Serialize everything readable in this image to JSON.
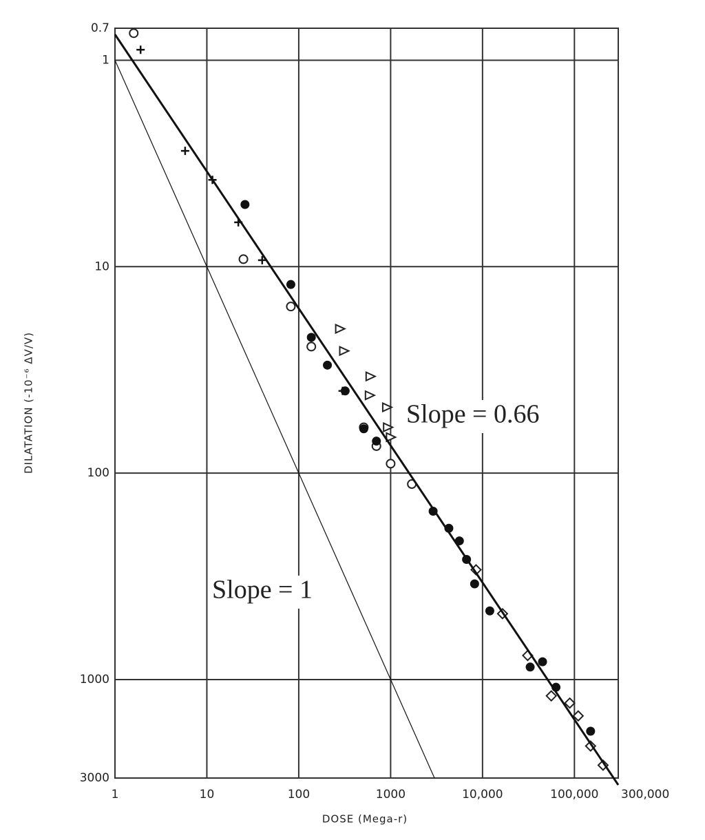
{
  "chart_data": {
    "type": "scatter",
    "x_label": "DOSE (Mega-r)",
    "y_label": "DILATATION (-10⁻⁶ ΔV/V)",
    "xlim": [
      1,
      300000
    ],
    "ylim": [
      0.7,
      3000
    ],
    "xscale": "log",
    "yscale": "log",
    "y_inverted": true,
    "grid": true,
    "xticks": [
      1,
      10,
      100,
      1000,
      {
        "value": 10000,
        "label": "10,000"
      },
      {
        "value": 100000,
        "label": "100,000"
      },
      {
        "value": 300000,
        "label": "300,000"
      }
    ],
    "yticks": [
      0.7,
      1,
      10,
      100,
      1000,
      3000
    ],
    "annotations": [
      "Slope = 0.66",
      "Slope = 1"
    ],
    "series": [
      {
        "marker": "open-circle",
        "color": "#222",
        "x": [
          1.6,
          25,
          82,
          137,
          510,
          700,
          1000,
          1700
        ],
        "values": [
          0.74,
          9.2,
          15.6,
          24.4,
          60,
          74,
          90,
          113
        ]
      },
      {
        "marker": "filled-circle",
        "color": "#111",
        "x": [
          26,
          82,
          137,
          205,
          320,
          510,
          700,
          2900,
          4300,
          5600,
          6700,
          8200,
          12000,
          33000,
          45000,
          63000,
          150000
        ],
        "values": [
          5.0,
          12.2,
          22,
          30,
          40,
          61,
          70,
          153,
          185,
          213,
          262,
          344,
          465,
          870,
          820,
          1090,
          1780
        ]
      },
      {
        "marker": "cross",
        "color": "#111",
        "x": [
          1.9,
          5.8,
          11.5,
          22,
          40,
          300
        ],
        "values": [
          0.89,
          2.75,
          3.8,
          6.1,
          9.3,
          40
        ]
      },
      {
        "marker": "triangle",
        "color": "#222",
        "x": [
          280,
          310,
          600,
          590,
          910,
          930,
          1000
        ],
        "values": [
          20,
          25.6,
          34,
          42,
          48,
          60,
          67
        ]
      },
      {
        "marker": "open-diamond",
        "color": "#222",
        "x": [
          8500,
          16500,
          31000,
          56000,
          89000,
          110000,
          150000,
          205000
        ],
        "values": [
          294,
          480,
          765,
          1200,
          1300,
          1500,
          2100,
          2600
        ]
      },
      {
        "marker": "line",
        "color": "#111",
        "width": 3,
        "x": [
          1,
          300000
        ],
        "values": [
          0.75,
          3240
        ]
      },
      {
        "marker": "line",
        "color": "#111",
        "width": 1.2,
        "x": [
          1,
          3000
        ],
        "values": [
          1,
          3000
        ]
      }
    ]
  }
}
